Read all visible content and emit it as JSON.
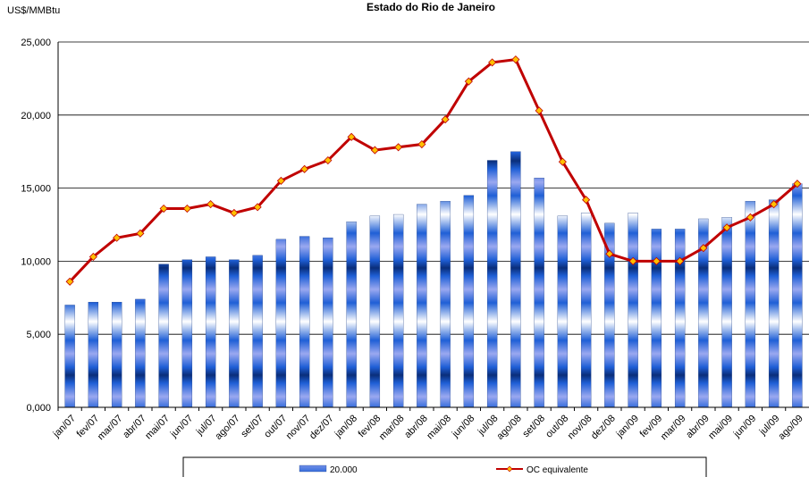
{
  "chart_data": {
    "type": "bar-line",
    "title": "Estado do Rio de Janeiro",
    "y_label": "US$/MMBtu",
    "categories": [
      "jan/07",
      "fev/07",
      "mar/07",
      "abr/07",
      "mai/07",
      "jun/07",
      "jul/07",
      "ago/07",
      "set/07",
      "out/07",
      "nov/07",
      "dez/07",
      "jan/08",
      "fev/08",
      "mar/08",
      "abr/08",
      "mai/08",
      "jun/08",
      "jul/08",
      "ago/08",
      "set/08",
      "out/08",
      "nov/08",
      "dez/08",
      "jan/09",
      "fev/09",
      "mar/09",
      "abr/09",
      "mai/09",
      "jun/09",
      "jul/09",
      "ago/09"
    ],
    "series": [
      {
        "name": "20.000",
        "type": "bar",
        "color": "#1f5fd6",
        "values": [
          7.0,
          7.2,
          7.2,
          7.4,
          9.8,
          10.1,
          10.3,
          10.1,
          10.4,
          11.5,
          11.7,
          11.6,
          12.7,
          13.1,
          13.2,
          13.9,
          14.1,
          14.5,
          16.9,
          17.5,
          15.7,
          13.1,
          13.3,
          12.6,
          13.3,
          12.2,
          12.2,
          12.9,
          13.0,
          14.1,
          14.2,
          15.3
        ]
      },
      {
        "name": "OC equivalente",
        "type": "line",
        "color": "#c00000",
        "marker_color": "#ffc000",
        "values": [
          8.6,
          10.3,
          11.6,
          11.9,
          13.6,
          13.6,
          13.9,
          13.3,
          13.7,
          15.5,
          16.3,
          16.9,
          18.5,
          17.6,
          17.8,
          18.0,
          19.7,
          22.3,
          23.6,
          23.8,
          20.3,
          16.8,
          14.2,
          10.5,
          10.0,
          10.0,
          10.0,
          10.9,
          12.3,
          13.0,
          13.9,
          15.3
        ]
      }
    ],
    "ylim": [
      0,
      25
    ],
    "yticks": [
      {
        "value": 0,
        "label": "0,000"
      },
      {
        "value": 5,
        "label": "5,000"
      },
      {
        "value": 10,
        "label": "10,000"
      },
      {
        "value": 15,
        "label": "15,000"
      },
      {
        "value": 20,
        "label": "20,000"
      },
      {
        "value": 25,
        "label": "25,000"
      }
    ],
    "grid": true
  }
}
